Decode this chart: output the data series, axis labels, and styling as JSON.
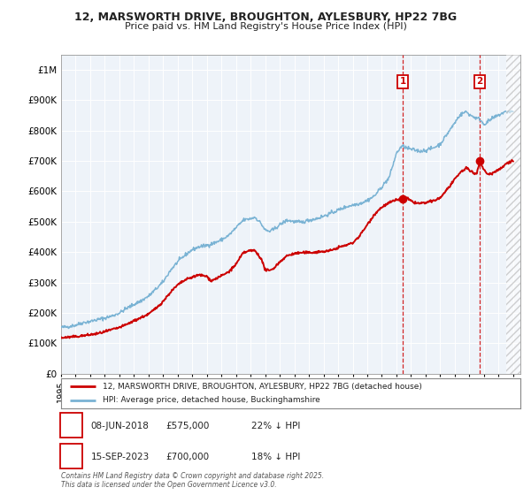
{
  "title_line1": "12, MARSWORTH DRIVE, BROUGHTON, AYLESBURY, HP22 7BG",
  "title_line2": "Price paid vs. HM Land Registry's House Price Index (HPI)",
  "ylim": [
    0,
    1050000
  ],
  "yticks": [
    0,
    100000,
    200000,
    300000,
    400000,
    500000,
    600000,
    700000,
    800000,
    900000,
    1000000
  ],
  "ytick_labels": [
    "£0",
    "£100K",
    "£200K",
    "£300K",
    "£400K",
    "£500K",
    "£600K",
    "£700K",
    "£800K",
    "£900K",
    "£1M"
  ],
  "xlim_start": 1995.0,
  "xlim_end": 2026.5,
  "hpi_color": "#7ab3d4",
  "price_color": "#cc0000",
  "plot_bg_color": "#eef3f9",
  "grid_color": "#ffffff",
  "sale1_x": 2018.44,
  "sale1_y": 575000,
  "sale2_x": 2023.71,
  "sale2_y": 700000,
  "legend_entry1": "12, MARSWORTH DRIVE, BROUGHTON, AYLESBURY, HP22 7BG (detached house)",
  "legend_entry2": "HPI: Average price, detached house, Buckinghamshire",
  "table_row1_num": "1",
  "table_row1_date": "08-JUN-2018",
  "table_row1_price": "£575,000",
  "table_row1_hpi": "22% ↓ HPI",
  "table_row2_num": "2",
  "table_row2_date": "15-SEP-2023",
  "table_row2_price": "£700,000",
  "table_row2_hpi": "18% ↓ HPI",
  "footer": "Contains HM Land Registry data © Crown copyright and database right 2025.\nThis data is licensed under the Open Government Licence v3.0.",
  "hpi_waypoints": [
    [
      1995.0,
      152000
    ],
    [
      1995.5,
      155000
    ],
    [
      1996.0,
      160000
    ],
    [
      1996.5,
      168000
    ],
    [
      1997.0,
      172000
    ],
    [
      1997.5,
      178000
    ],
    [
      1998.0,
      183000
    ],
    [
      1998.5,
      190000
    ],
    [
      1999.0,
      200000
    ],
    [
      1999.5,
      215000
    ],
    [
      2000.0,
      228000
    ],
    [
      2000.5,
      240000
    ],
    [
      2001.0,
      255000
    ],
    [
      2001.5,
      278000
    ],
    [
      2002.0,
      302000
    ],
    [
      2002.5,
      340000
    ],
    [
      2003.0,
      368000
    ],
    [
      2003.5,
      390000
    ],
    [
      2004.0,
      408000
    ],
    [
      2004.5,
      418000
    ],
    [
      2005.0,
      422000
    ],
    [
      2005.5,
      430000
    ],
    [
      2006.0,
      440000
    ],
    [
      2006.5,
      455000
    ],
    [
      2007.0,
      480000
    ],
    [
      2007.5,
      505000
    ],
    [
      2008.0,
      510000
    ],
    [
      2008.3,
      515000
    ],
    [
      2008.7,
      495000
    ],
    [
      2009.0,
      472000
    ],
    [
      2009.3,
      468000
    ],
    [
      2009.6,
      475000
    ],
    [
      2010.0,
      490000
    ],
    [
      2010.5,
      505000
    ],
    [
      2011.0,
      500000
    ],
    [
      2011.5,
      498000
    ],
    [
      2012.0,
      505000
    ],
    [
      2012.5,
      510000
    ],
    [
      2013.0,
      518000
    ],
    [
      2013.5,
      528000
    ],
    [
      2014.0,
      538000
    ],
    [
      2014.5,
      548000
    ],
    [
      2015.0,
      555000
    ],
    [
      2015.5,
      560000
    ],
    [
      2016.0,
      570000
    ],
    [
      2016.5,
      585000
    ],
    [
      2017.0,
      615000
    ],
    [
      2017.5,
      645000
    ],
    [
      2018.0,
      725000
    ],
    [
      2018.3,
      745000
    ],
    [
      2018.5,
      748000
    ],
    [
      2018.7,
      742000
    ],
    [
      2019.0,
      738000
    ],
    [
      2019.3,
      735000
    ],
    [
      2019.6,
      732000
    ],
    [
      2020.0,
      735000
    ],
    [
      2020.5,
      742000
    ],
    [
      2021.0,
      755000
    ],
    [
      2021.5,
      790000
    ],
    [
      2022.0,
      825000
    ],
    [
      2022.3,
      848000
    ],
    [
      2022.6,
      858000
    ],
    [
      2022.8,
      862000
    ],
    [
      2023.0,
      852000
    ],
    [
      2023.3,
      845000
    ],
    [
      2023.5,
      840000
    ],
    [
      2023.71,
      838000
    ],
    [
      2024.0,
      820000
    ],
    [
      2024.3,
      830000
    ],
    [
      2024.6,
      840000
    ],
    [
      2025.0,
      850000
    ],
    [
      2025.3,
      858000
    ],
    [
      2025.6,
      862000
    ],
    [
      2026.0,
      862000
    ]
  ],
  "price_waypoints": [
    [
      1995.0,
      118000
    ],
    [
      1995.5,
      120000
    ],
    [
      1996.0,
      122000
    ],
    [
      1996.5,
      125000
    ],
    [
      1997.0,
      128000
    ],
    [
      1997.5,
      132000
    ],
    [
      1998.0,
      138000
    ],
    [
      1998.5,
      145000
    ],
    [
      1999.0,
      152000
    ],
    [
      1999.5,
      162000
    ],
    [
      2000.0,
      174000
    ],
    [
      2000.5,
      185000
    ],
    [
      2001.0,
      196000
    ],
    [
      2001.5,
      215000
    ],
    [
      2002.0,
      238000
    ],
    [
      2002.5,
      268000
    ],
    [
      2003.0,
      292000
    ],
    [
      2003.5,
      308000
    ],
    [
      2004.0,
      318000
    ],
    [
      2004.5,
      325000
    ],
    [
      2005.0,
      320000
    ],
    [
      2005.3,
      305000
    ],
    [
      2005.5,
      310000
    ],
    [
      2006.0,
      322000
    ],
    [
      2006.5,
      335000
    ],
    [
      2007.0,
      360000
    ],
    [
      2007.5,
      398000
    ],
    [
      2008.0,
      405000
    ],
    [
      2008.3,
      405000
    ],
    [
      2008.7,
      380000
    ],
    [
      2009.0,
      342000
    ],
    [
      2009.3,
      338000
    ],
    [
      2009.6,
      348000
    ],
    [
      2010.0,
      368000
    ],
    [
      2010.5,
      388000
    ],
    [
      2011.0,
      395000
    ],
    [
      2011.5,
      398000
    ],
    [
      2012.0,
      398000
    ],
    [
      2012.5,
      400000
    ],
    [
      2013.0,
      402000
    ],
    [
      2013.5,
      405000
    ],
    [
      2014.0,
      415000
    ],
    [
      2014.5,
      422000
    ],
    [
      2015.0,
      430000
    ],
    [
      2015.5,
      455000
    ],
    [
      2016.0,
      490000
    ],
    [
      2016.5,
      525000
    ],
    [
      2017.0,
      548000
    ],
    [
      2017.5,
      562000
    ],
    [
      2018.0,
      572000
    ],
    [
      2018.44,
      575000
    ],
    [
      2018.7,
      578000
    ],
    [
      2019.0,
      568000
    ],
    [
      2019.3,
      562000
    ],
    [
      2019.6,
      560000
    ],
    [
      2020.0,
      562000
    ],
    [
      2020.5,
      568000
    ],
    [
      2021.0,
      578000
    ],
    [
      2021.5,
      608000
    ],
    [
      2022.0,
      638000
    ],
    [
      2022.3,
      658000
    ],
    [
      2022.6,
      670000
    ],
    [
      2022.8,
      678000
    ],
    [
      2023.0,
      668000
    ],
    [
      2023.3,
      660000
    ],
    [
      2023.5,
      658000
    ],
    [
      2023.71,
      700000
    ],
    [
      2024.0,
      670000
    ],
    [
      2024.3,
      655000
    ],
    [
      2024.6,
      660000
    ],
    [
      2025.0,
      672000
    ],
    [
      2025.3,
      680000
    ],
    [
      2025.6,
      695000
    ],
    [
      2026.0,
      700000
    ]
  ]
}
